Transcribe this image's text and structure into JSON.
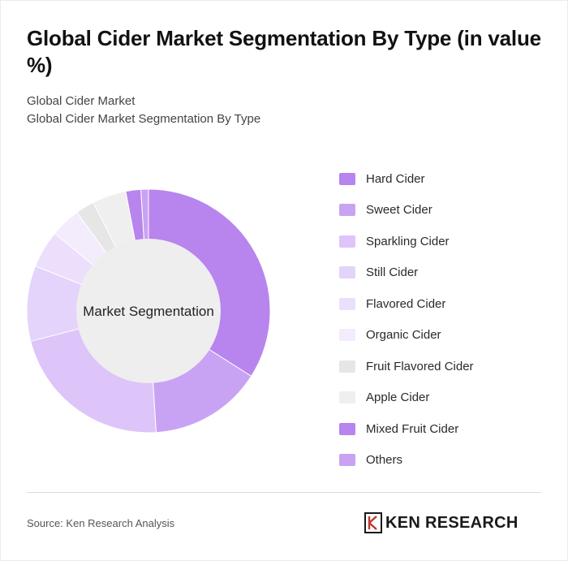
{
  "header": {
    "title": "Global Cider Market Segmentation By Type (in value %)",
    "subtitle_line1": "Global Cider Market",
    "subtitle_line2": "Global Cider Market Segmentation By Type"
  },
  "chart_data": {
    "type": "pie",
    "donut": true,
    "center_label": "Market Segmentation",
    "legend_position": "right",
    "categories": [
      "Hard Cider",
      "Sweet Cider",
      "Sparkling Cider",
      "Still Cider",
      "Flavored Cider",
      "Organic Cider",
      "Fruit Flavored Cider",
      "Apple Cider",
      "Mixed Fruit Cider",
      "Others"
    ],
    "values": [
      34,
      15,
      22,
      10,
      5,
      4,
      2.5,
      4.5,
      2,
      1
    ],
    "colors": [
      "#b884ee",
      "#c9a3f3",
      "#ddc5f9",
      "#e4d3fa",
      "#ecdffc",
      "#f3ecfd",
      "#e6e6e6",
      "#efefef",
      "#b884ee",
      "#c9a3f3"
    ]
  },
  "footer": {
    "source": "Source: Ken Research Analysis",
    "logo_text": "KEN RESEARCH"
  }
}
